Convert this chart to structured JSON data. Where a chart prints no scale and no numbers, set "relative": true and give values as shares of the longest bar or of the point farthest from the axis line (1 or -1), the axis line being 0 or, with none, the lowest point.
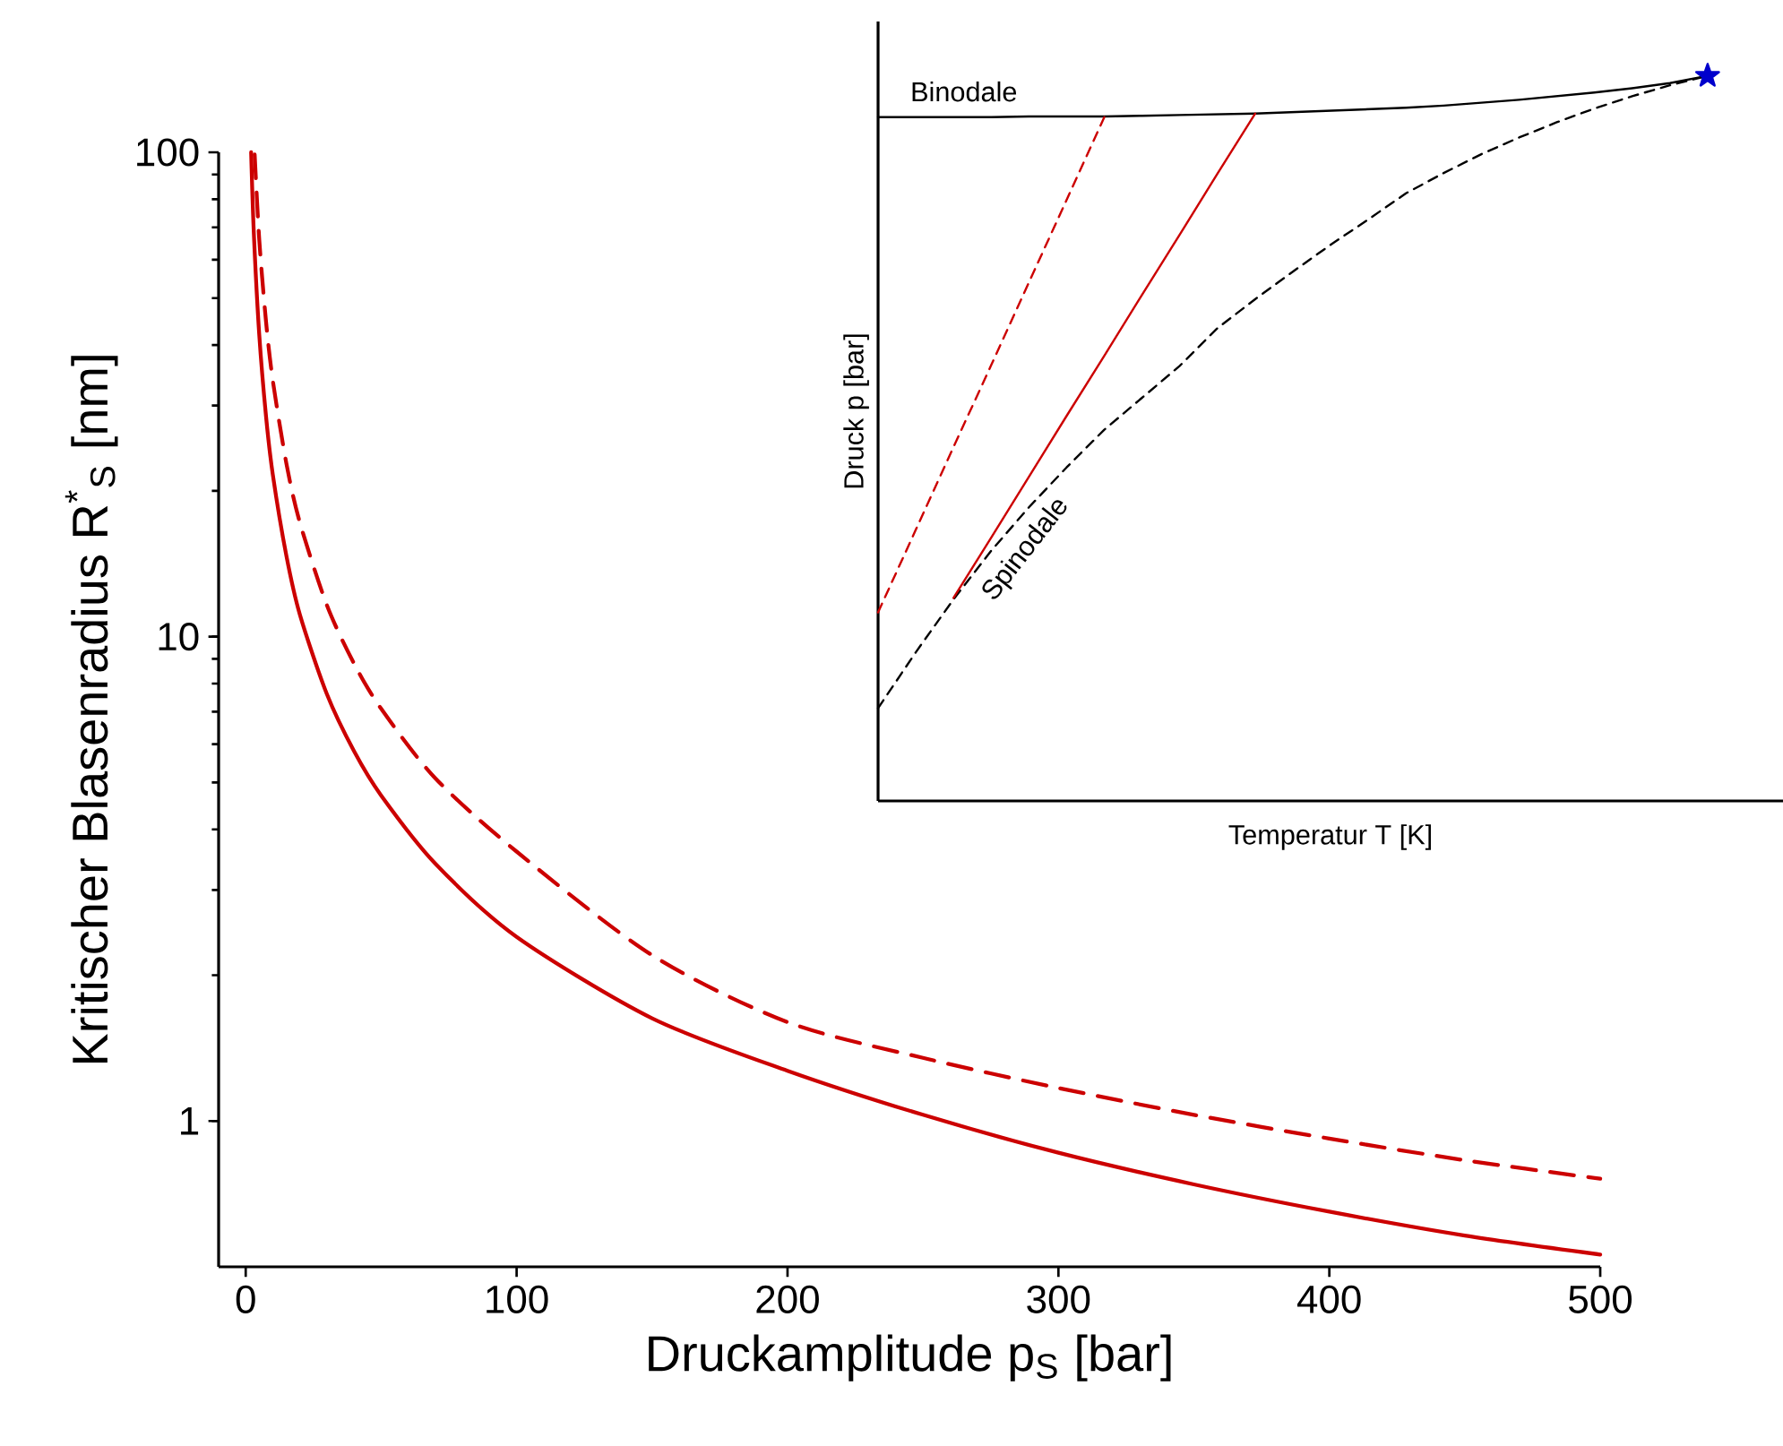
{
  "chart_data": [
    {
      "type": "line",
      "xlabel": "Druckamplitude p$_{S}$ [bar]",
      "ylabel": "Kritischer Blasenradius R$^{*}$$_{S}$ [nm]",
      "log": "y",
      "xlim": [
        -10,
        500
      ],
      "ylim": [
        0.5,
        100
      ],
      "xticks": [
        0,
        100,
        200,
        300,
        400,
        500
      ],
      "yticks": [
        1,
        10,
        100
      ],
      "grid": false,
      "series": [
        {
          "color": "#cc0000",
          "line_style": "solid",
          "x": [
            2,
            3,
            5,
            7.5,
            10,
            15,
            20,
            30,
            40,
            50,
            70,
            100,
            150,
            200,
            250,
            300,
            350,
            400,
            450,
            500
          ],
          "values": [
            100,
            68,
            42,
            28.5,
            21.6,
            14.7,
            11.1,
            7.6,
            5.8,
            4.7,
            3.4,
            2.4,
            1.63,
            1.27,
            1.03,
            0.86,
            0.74,
            0.65,
            0.58,
            0.53
          ]
        },
        {
          "color": "#cc0000",
          "line_style": "dashed",
          "x": [
            3.3,
            5,
            7.5,
            10,
            15,
            20,
            30,
            40,
            50,
            70,
            100,
            150,
            200,
            250,
            300,
            350,
            400,
            450,
            500
          ],
          "values": [
            99,
            66,
            44.7,
            33.8,
            22.8,
            17.2,
            11.6,
            8.8,
            7.1,
            5.1,
            3.6,
            2.2,
            1.6,
            1.35,
            1.17,
            1.03,
            0.92,
            0.83,
            0.76
          ]
        }
      ]
    },
    {
      "type": "line",
      "relative": true,
      "xlabel": "Temperatur T [K]",
      "ylabel": "Druck p [bar]",
      "grid": false,
      "categories": [
        null,
        null,
        null,
        null,
        null,
        null,
        null,
        null,
        null,
        null,
        null,
        null,
        null,
        null,
        null,
        null,
        null,
        null,
        null,
        null,
        null,
        null,
        null,
        null,
        null
      ],
      "series": [
        {
          "name": "Binodale",
          "color": "#000000",
          "line_style": "solid",
          "values": [
            0.943,
            0.943,
            0.943,
            0.943,
            0.944,
            0.944,
            0.944,
            0.945,
            0.946,
            0.947,
            0.948,
            0.95,
            0.952,
            0.954,
            0.956,
            0.959,
            0.963,
            0.967,
            0.972,
            0.977,
            0.983,
            0.99,
            1.0,
            null,
            null
          ]
        },
        {
          "name": "Spinodale",
          "color": "#000000",
          "line_style": "dashed",
          "values": [
            0.128,
            0.205,
            0.278,
            0.345,
            0.405,
            0.46,
            0.512,
            0.556,
            0.6,
            0.652,
            0.692,
            0.73,
            0.767,
            0.802,
            0.838,
            0.866,
            0.892,
            0.915,
            0.936,
            0.955,
            0.972,
            0.987,
            1.0,
            null,
            null
          ]
        },
        {
          "color": "#cc0000",
          "line_style": "solid",
          "values": [
            null,
            null,
            0.28,
            0.363,
            0.447,
            0.531,
            0.614,
            0.698,
            0.781,
            0.865,
            0.948,
            null,
            null,
            null,
            null,
            null,
            null,
            null,
            null,
            null,
            null,
            null,
            null,
            null,
            null
          ]
        },
        {
          "color": "#cc0000",
          "line_style": "dashed",
          "values": [
            0.26,
            0.374,
            0.488,
            0.601,
            0.715,
            0.829,
            0.943,
            null,
            null,
            null,
            null,
            null,
            null,
            null,
            null,
            null,
            null,
            null,
            null,
            null,
            null,
            null,
            null,
            null,
            null
          ]
        },
        {
          "marker": "star",
          "line_style": "solid",
          "color": "#0000cc",
          "values": [
            null,
            null,
            null,
            null,
            null,
            null,
            null,
            null,
            null,
            null,
            null,
            null,
            null,
            null,
            null,
            null,
            null,
            null,
            null,
            null,
            null,
            null,
            1.0,
            null,
            null
          ]
        }
      ]
    }
  ]
}
